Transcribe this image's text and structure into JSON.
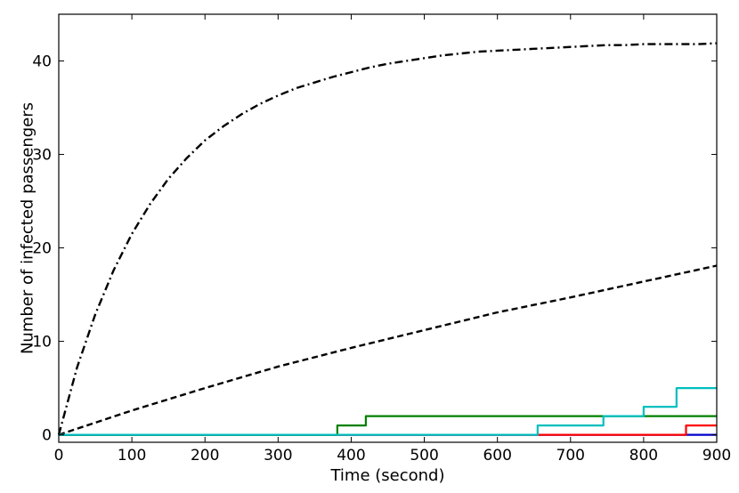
{
  "chart_data": {
    "type": "line",
    "xlabel": "Time (second)",
    "ylabel": "Number of infected passengers",
    "xlim": [
      0,
      900
    ],
    "ylim": [
      -0.8,
      45
    ],
    "xticks": [
      0,
      100,
      200,
      300,
      400,
      500,
      600,
      700,
      800,
      900
    ],
    "yticks": [
      0,
      10,
      20,
      30,
      40
    ],
    "grid": false,
    "legend": "none",
    "series": [
      {
        "color": "#000000",
        "style": "dashdot",
        "step": false,
        "x": [
          0,
          25,
          50,
          75,
          100,
          125,
          150,
          175,
          200,
          225,
          250,
          275,
          300,
          325,
          350,
          375,
          400,
          425,
          450,
          475,
          500,
          525,
          550,
          575,
          600,
          625,
          650,
          675,
          700,
          725,
          750,
          775,
          800,
          825,
          850,
          875,
          900
        ],
        "y": [
          0,
          7.2,
          12.9,
          17.6,
          21.5,
          24.7,
          27.4,
          29.6,
          31.5,
          33.0,
          34.3,
          35.4,
          36.3,
          37.1,
          37.7,
          38.3,
          38.8,
          39.3,
          39.7,
          40.0,
          40.3,
          40.6,
          40.8,
          41.0,
          41.1,
          41.2,
          41.3,
          41.4,
          41.5,
          41.6,
          41.7,
          41.7,
          41.8,
          41.8,
          41.8,
          41.8,
          41.9
        ]
      },
      {
        "color": "#000000",
        "style": "dashed",
        "step": false,
        "x": [
          0,
          100,
          200,
          300,
          400,
          500,
          600,
          700,
          800,
          900
        ],
        "y": [
          0,
          2.6,
          5.0,
          7.3,
          9.3,
          11.2,
          13.1,
          14.7,
          16.4,
          18.1
        ]
      },
      {
        "color": "#0000cc",
        "style": "solid",
        "step": true,
        "x": [
          0,
          900
        ],
        "y": [
          0,
          0
        ]
      },
      {
        "color": "#ff0000",
        "style": "solid",
        "step": true,
        "x": [
          0,
          858,
          900
        ],
        "y": [
          0,
          1,
          1
        ]
      },
      {
        "color": "#008000",
        "style": "solid",
        "step": true,
        "x": [
          0,
          381,
          420,
          900
        ],
        "y": [
          0,
          1,
          2,
          2
        ]
      },
      {
        "color": "#00bfbf",
        "style": "solid",
        "step": true,
        "x": [
          0,
          655,
          745,
          800,
          845,
          900
        ],
        "y": [
          0,
          1,
          2,
          3,
          5,
          5
        ]
      }
    ]
  }
}
